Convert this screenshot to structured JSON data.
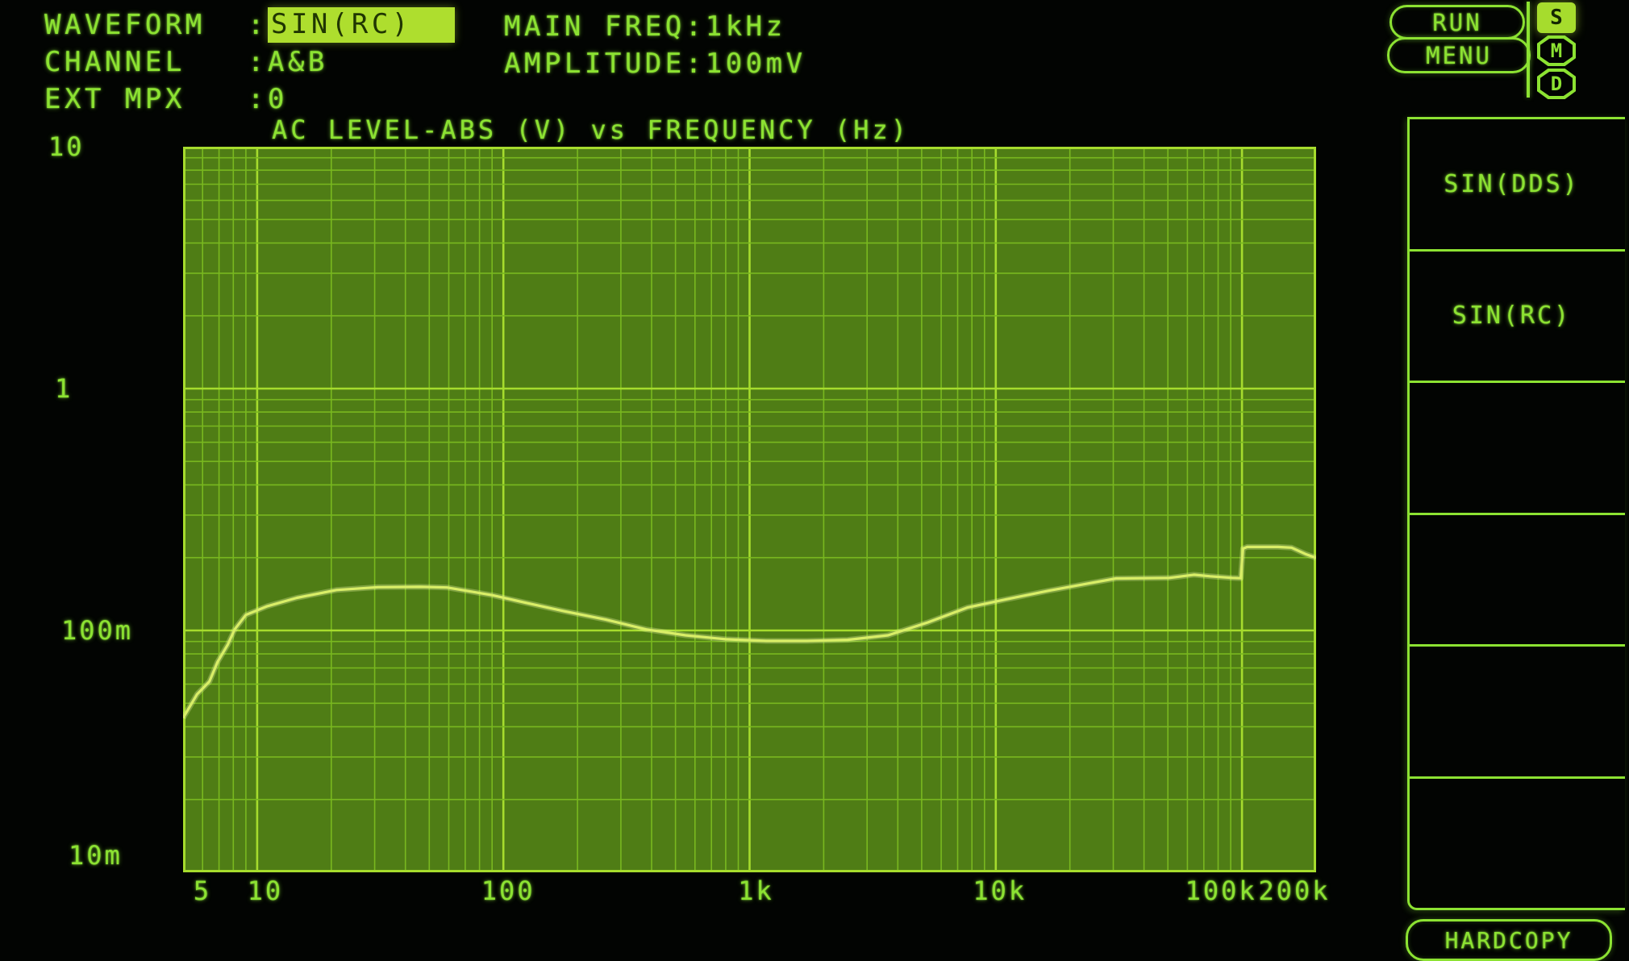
{
  "header": {
    "separator": ":",
    "fields": [
      {
        "label": "WAVEFORM",
        "value": "SIN(RC)",
        "highlighted": true
      },
      {
        "label": "CHANNEL",
        "value": "A&B",
        "highlighted": false
      },
      {
        "label": "EXT MPX",
        "value": "0",
        "highlighted": false
      }
    ],
    "params": [
      {
        "label": "MAIN FREQ",
        "value": "1kHz"
      },
      {
        "label": "AMPLITUDE",
        "value": "100mV"
      }
    ]
  },
  "buttons": {
    "run": "RUN",
    "menu": "MENU",
    "hardcopy": "HARDCOPY"
  },
  "mode_badges": [
    {
      "label": "S",
      "active": true
    },
    {
      "label": "M",
      "active": false
    },
    {
      "label": "D",
      "active": false
    }
  ],
  "softkeys": [
    {
      "label": "SIN(DDS)"
    },
    {
      "label": "SIN(RC)"
    },
    {
      "label": ""
    },
    {
      "label": ""
    },
    {
      "label": ""
    },
    {
      "label": ""
    }
  ],
  "colors": {
    "background": "#020402",
    "phosphor_text": "#8ce232",
    "plot_bg": "#4f7d15",
    "grid_minor": "#79b81f",
    "grid_major": "#a6dc2d",
    "trace": "#d9ee67",
    "trace_glow": "#eef9a4",
    "highlight_bg": "#aede2e",
    "highlight_text": "#203602"
  },
  "chart_data": {
    "type": "line",
    "title": "AC LEVEL-ABS (V) vs FREQUENCY (Hz)",
    "xlabel": "FREQUENCY (Hz)",
    "ylabel": "AC LEVEL-ABS (V)",
    "x_scale": "log",
    "y_scale": "log",
    "x_range": [
      5,
      200000
    ],
    "y_range": [
      0.01,
      10
    ],
    "grid": true,
    "x_tick_labels": [
      {
        "label": "5",
        "f": 5
      },
      {
        "label": "10",
        "f": 10
      },
      {
        "label": "100",
        "f": 100
      },
      {
        "label": "1k",
        "f": 1000
      },
      {
        "label": "10k",
        "f": 10000
      },
      {
        "label": "100k",
        "f": 100000
      },
      {
        "label": "200k",
        "f": 200000
      }
    ],
    "y_tick_labels": [
      {
        "label": "10",
        "v": 10
      },
      {
        "label": "1",
        "v": 1
      },
      {
        "label": "100m",
        "v": 0.1
      },
      {
        "label": "10m",
        "v": 0.01
      }
    ],
    "series": [
      {
        "name": "AC LEVEL-ABS",
        "points": [
          [
            5,
            0.0435
          ],
          [
            5.3,
            0.048
          ],
          [
            5.7,
            0.0545
          ],
          [
            6.4,
            0.0615
          ],
          [
            6.9,
            0.074
          ],
          [
            7.6,
            0.0875
          ],
          [
            8.1,
            0.101
          ],
          [
            9,
            0.116
          ],
          [
            11,
            0.126
          ],
          [
            14.5,
            0.1365
          ],
          [
            21,
            0.147
          ],
          [
            31,
            0.151
          ],
          [
            46,
            0.1515
          ],
          [
            59,
            0.1505
          ],
          [
            90,
            0.14
          ],
          [
            124,
            0.13
          ],
          [
            177,
            0.12
          ],
          [
            260,
            0.111
          ],
          [
            380,
            0.101
          ],
          [
            550,
            0.0955
          ],
          [
            800,
            0.092
          ],
          [
            1170,
            0.0905
          ],
          [
            1710,
            0.0905
          ],
          [
            2500,
            0.0915
          ],
          [
            3650,
            0.0955
          ],
          [
            5300,
            0.108
          ],
          [
            7700,
            0.1245
          ],
          [
            11000,
            0.1345
          ],
          [
            16400,
            0.146
          ],
          [
            23900,
            0.1565
          ],
          [
            30800,
            0.164
          ],
          [
            50700,
            0.165
          ],
          [
            63800,
            0.17
          ],
          [
            74200,
            0.1675
          ],
          [
            91300,
            0.165
          ],
          [
            98800,
            0.1645
          ],
          [
            101000,
            0.218
          ],
          [
            105000,
            0.2215
          ],
          [
            140000,
            0.2215
          ],
          [
            159000,
            0.22
          ],
          [
            181000,
            0.207
          ],
          [
            200000,
            0.1995
          ]
        ]
      }
    ]
  }
}
